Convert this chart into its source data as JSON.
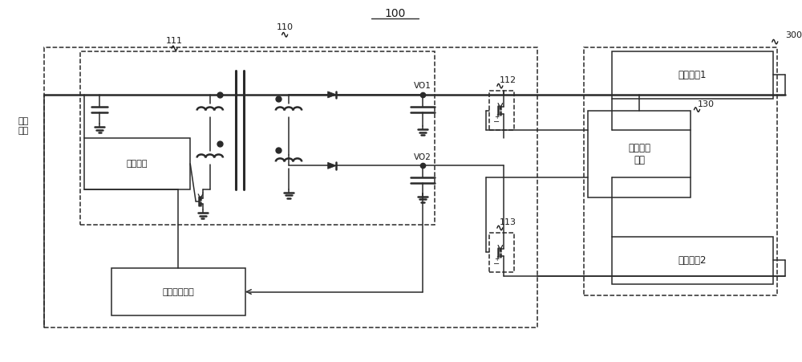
{
  "figsize": [
    10.0,
    4.51
  ],
  "dpi": 100,
  "bg": "#ffffff",
  "lc": "#2a2a2a",
  "tc": "#1a1a1a",
  "labels": {
    "title": "100",
    "input": "输入\n电源",
    "control": "控制电路",
    "feedback": "闭环反馈电路",
    "detect": "检测处理\n模块",
    "bat1": "电池单元1",
    "bat2": "电池单元2",
    "vo1": "VO1",
    "vo2": "VO2",
    "n110": "110",
    "n111": "111",
    "n112": "112",
    "n113": "113",
    "n130": "130",
    "n300": "300"
  }
}
